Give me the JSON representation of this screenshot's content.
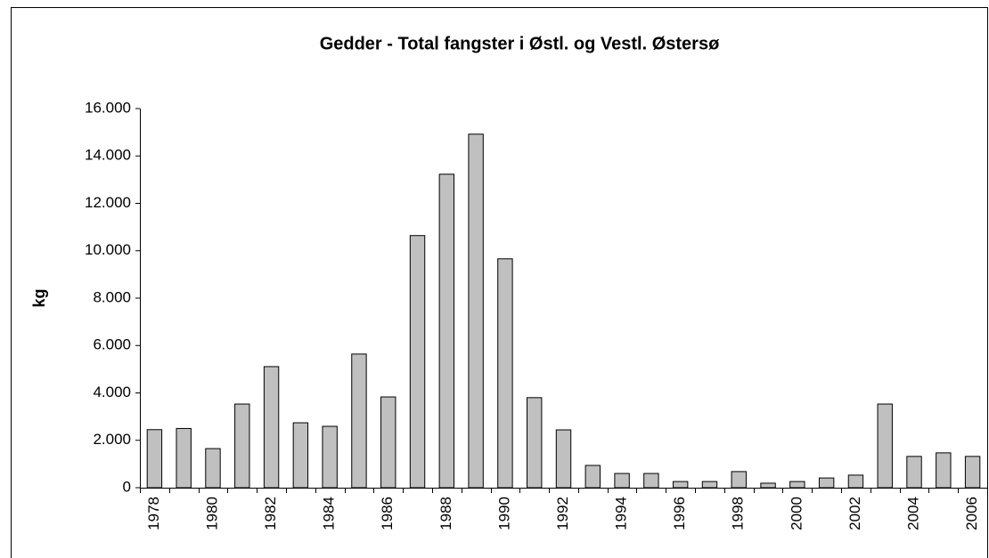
{
  "chart_data": {
    "type": "bar",
    "title": "Gedder - Total fangster i Østl. og Vestl. Østersø",
    "y_label": "kg",
    "categories": [
      "1978",
      null,
      "1980",
      null,
      "1982",
      null,
      "1984",
      null,
      "1986",
      null,
      "1988",
      null,
      "1990",
      null,
      "1992",
      null,
      "1994",
      null,
      "1996",
      null,
      "1998",
      null,
      "2000",
      null,
      "2002",
      null,
      "2004",
      null,
      "2006"
    ],
    "values": [
      2450,
      2500,
      1650,
      3530,
      5110,
      2740,
      2590,
      5640,
      3830,
      10640,
      13230,
      14920,
      9660,
      3800,
      2440,
      940,
      600,
      600,
      260,
      260,
      680,
      190,
      260,
      410,
      530,
      3530,
      1320,
      1470,
      1320
    ],
    "color": "#c0c0c0",
    "ylim": [
      0,
      16000
    ],
    "yticks": [
      0,
      {
        "value": 2000,
        "label": "2.000"
      },
      {
        "value": 4000,
        "label": "4.000"
      },
      {
        "value": 6000,
        "label": "6.000"
      },
      {
        "value": 8000,
        "label": "8.000"
      },
      {
        "value": 10000,
        "label": "10.000"
      },
      {
        "value": 12000,
        "label": "12.000"
      },
      {
        "value": 14000,
        "label": "14.000"
      },
      {
        "value": 16000,
        "label": "16.000"
      }
    ],
    "grid": false
  }
}
